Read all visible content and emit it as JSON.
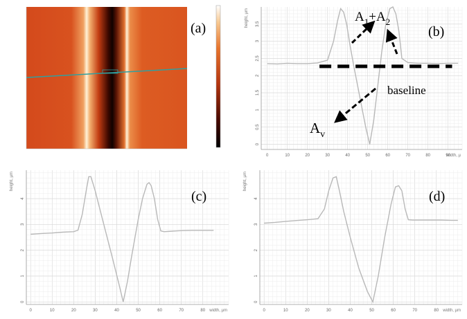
{
  "chart_data": [
    {
      "panel": "(a)",
      "type": "heatmap",
      "colorbar_ticks": [
        "",
        "",
        "",
        "",
        "",
        "",
        "",
        "",
        ""
      ]
    },
    {
      "panel": "(b)",
      "type": "line",
      "ylabel": "height, µm",
      "xlabel": "width, µ",
      "x_ticks": [
        0,
        10,
        20,
        30,
        40,
        50,
        60,
        70,
        80,
        90
      ],
      "y_ticks": [
        0,
        0.5,
        1.0,
        1.5,
        2.0,
        2.5,
        3.0,
        3.5
      ],
      "xlim": [
        -3,
        97
      ],
      "ylim": [
        -0.15,
        4.0
      ],
      "series": [
        {
          "x": [
            0,
            5,
            10,
            15,
            20,
            25,
            30,
            33,
            35,
            36.5,
            38,
            39.5,
            41,
            43,
            45,
            47,
            49,
            51,
            53,
            55,
            57,
            59,
            61,
            62.5,
            64,
            65.5,
            67,
            70,
            75,
            80,
            85,
            90,
            95
          ],
          "y": [
            2.35,
            2.34,
            2.36,
            2.35,
            2.35,
            2.37,
            2.45,
            3.0,
            3.6,
            3.95,
            3.85,
            3.5,
            2.95,
            2.3,
            1.7,
            1.1,
            0.5,
            0.0,
            0.7,
            1.7,
            2.7,
            3.5,
            3.95,
            4.0,
            3.8,
            3.3,
            2.5,
            2.38,
            2.36,
            2.36,
            2.35,
            2.36,
            2.36
          ]
        }
      ],
      "baseline_y": 2.27,
      "annotations": {
        "a1_a2": {
          "base": "A",
          "sub1": "1",
          "plus": "+A",
          "sub2": "2"
        },
        "av": {
          "base": "A",
          "sub": "v"
        },
        "baseline": "baseline"
      },
      "label": "(b)"
    },
    {
      "panel": "(c)",
      "type": "line",
      "ylabel": "height, µm",
      "xlabel": "width, µm",
      "x_ticks": [
        0,
        10,
        20,
        30,
        40,
        50,
        60,
        70,
        80
      ],
      "y_ticks": [
        0,
        1,
        2,
        3,
        4
      ],
      "xlim": [
        -2,
        92
      ],
      "ylim": [
        -0.1,
        5.1
      ],
      "series": [
        {
          "x": [
            0,
            5,
            10,
            15,
            20,
            22,
            24,
            26,
            27,
            28,
            30,
            34,
            38,
            41,
            43,
            45,
            47,
            50,
            52,
            54,
            55,
            56,
            57.5,
            59,
            60.5,
            62,
            66,
            70,
            75,
            80,
            85
          ],
          "y": [
            2.62,
            2.65,
            2.67,
            2.7,
            2.72,
            2.78,
            3.4,
            4.4,
            4.85,
            4.85,
            4.3,
            3.0,
            1.7,
            0.7,
            0.0,
            0.8,
            1.8,
            3.2,
            4.0,
            4.55,
            4.62,
            4.5,
            4.0,
            3.2,
            2.75,
            2.72,
            2.74,
            2.76,
            2.77,
            2.77,
            2.77
          ]
        }
      ],
      "label": "(c)"
    },
    {
      "panel": "(d)",
      "type": "line",
      "ylabel": "height, µm",
      "xlabel": "width, µm",
      "x_ticks": [
        0,
        10,
        20,
        30,
        40,
        50,
        60,
        70,
        80
      ],
      "y_ticks": [
        0,
        1,
        2,
        3,
        4
      ],
      "xlim": [
        -2,
        92
      ],
      "ylim": [
        -0.1,
        5.1
      ],
      "series": [
        {
          "x": [
            0,
            5,
            10,
            15,
            20,
            25,
            28,
            30,
            32,
            33.5,
            35,
            37,
            40,
            44,
            48,
            50.5,
            53,
            56,
            59,
            61,
            62.5,
            64,
            65.5,
            67,
            69,
            72,
            77,
            82,
            87,
            90
          ],
          "y": [
            3.05,
            3.08,
            3.12,
            3.15,
            3.18,
            3.22,
            3.6,
            4.3,
            4.8,
            4.85,
            4.3,
            3.5,
            2.5,
            1.3,
            0.4,
            0.0,
            1.0,
            2.5,
            3.8,
            4.45,
            4.5,
            4.3,
            3.6,
            3.18,
            3.17,
            3.17,
            3.17,
            3.17,
            3.16,
            3.16
          ]
        }
      ],
      "label": "(d)"
    }
  ],
  "panel_a": {
    "label": "(a)",
    "colors": {
      "background": "#d9511f",
      "bright": "#fff4dc",
      "dark": "#1a0500",
      "line": "#2fa0a0"
    }
  }
}
